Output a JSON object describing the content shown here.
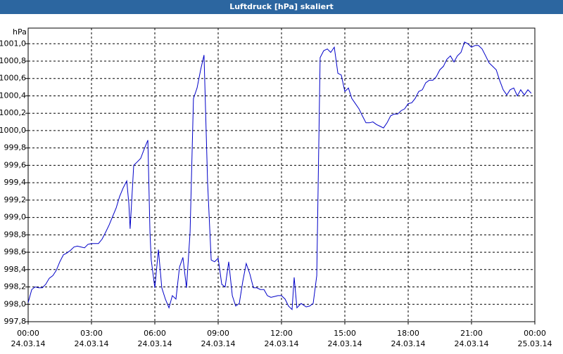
{
  "chart_data": {
    "type": "line",
    "title": "Luftdruck [hPa] skaliert",
    "y_label": "hPa",
    "color": "#0000c8",
    "grid": true,
    "x": [
      0,
      0.17,
      0.33,
      0.5,
      0.67,
      0.83,
      1,
      1.17,
      1.33,
      1.5,
      1.67,
      1.83,
      2,
      2.17,
      2.33,
      2.5,
      2.67,
      2.83,
      3,
      3.17,
      3.33,
      3.5,
      3.67,
      3.83,
      4,
      4.17,
      4.33,
      4.5,
      4.67,
      4.77,
      4.83,
      5,
      5.17,
      5.33,
      5.5,
      5.67,
      5.77,
      5.83,
      6,
      6.17,
      6.33,
      6.5,
      6.67,
      6.83,
      7,
      7.17,
      7.33,
      7.5,
      7.67,
      7.83,
      8,
      8.17,
      8.33,
      8.5,
      8.67,
      8.83,
      9,
      9.17,
      9.33,
      9.5,
      9.67,
      9.83,
      10,
      10.17,
      10.33,
      10.5,
      10.67,
      10.83,
      11,
      11.17,
      11.33,
      11.5,
      11.67,
      11.83,
      12,
      12.17,
      12.33,
      12.5,
      12.6,
      12.73,
      12.93,
      13.17,
      13.33,
      13.5,
      13.67,
      13.83,
      14,
      14.17,
      14.33,
      14.5,
      14.67,
      14.83,
      15,
      15.17,
      15.33,
      15.5,
      15.67,
      15.83,
      16,
      16.17,
      16.33,
      16.5,
      16.67,
      16.83,
      17,
      17.17,
      17.33,
      17.5,
      17.67,
      17.83,
      18,
      18.17,
      18.33,
      18.5,
      18.67,
      18.83,
      19,
      19.17,
      19.33,
      19.5,
      19.67,
      19.83,
      20,
      20.17,
      20.33,
      20.5,
      20.67,
      20.83,
      21,
      21.17,
      21.33,
      21.5,
      21.67,
      21.83,
      22,
      22.17,
      22.33,
      22.5,
      22.67,
      22.83,
      23,
      23.17,
      23.33,
      23.5,
      23.67,
      23.83
    ],
    "values": [
      998.02,
      998.17,
      998.2,
      998.19,
      998.19,
      998.23,
      998.3,
      998.33,
      998.39,
      998.49,
      998.57,
      998.59,
      998.62,
      998.66,
      998.67,
      998.66,
      998.65,
      998.69,
      998.7,
      998.7,
      998.7,
      998.75,
      998.83,
      998.91,
      999.01,
      999.11,
      999.24,
      999.34,
      999.42,
      999.16,
      998.87,
      999.6,
      999.64,
      999.68,
      999.79,
      999.89,
      998.83,
      998.51,
      998.19,
      998.63,
      998.19,
      998.06,
      997.96,
      998.1,
      998.06,
      998.43,
      998.54,
      998.19,
      998.83,
      1000.37,
      1000.49,
      1000.7,
      1000.87,
      999.4,
      998.51,
      998.49,
      998.53,
      998.23,
      998.2,
      998.49,
      998.1,
      997.98,
      998.01,
      998.27,
      998.47,
      998.35,
      998.19,
      998.19,
      998.17,
      998.17,
      998.1,
      998.08,
      998.09,
      998.1,
      998.1,
      998.06,
      997.98,
      997.94,
      998.31,
      997.96,
      998.01,
      997.97,
      997.98,
      998.01,
      998.33,
      1000.84,
      1000.92,
      1000.94,
      1000.9,
      1000.96,
      1000.66,
      1000.64,
      1000.45,
      1000.49,
      1000.37,
      1000.31,
      1000.25,
      1000.17,
      1000.09,
      1000.09,
      1000.1,
      1000.07,
      1000.05,
      1000.03,
      1000.09,
      1000.17,
      1000.19,
      1000.19,
      1000.23,
      1000.25,
      1000.31,
      1000.32,
      1000.37,
      1000.45,
      1000.47,
      1000.55,
      1000.58,
      1000.58,
      1000.62,
      1000.7,
      1000.74,
      1000.82,
      1000.86,
      1000.79,
      1000.86,
      1000.9,
      1001.02,
      1001.0,
      1000.96,
      1000.98,
      1000.98,
      1000.94,
      1000.86,
      1000.78,
      1000.74,
      1000.7,
      1000.58,
      1000.47,
      1000.41,
      1000.47,
      1000.49,
      1000.4,
      1000.47,
      1000.41,
      1000.47,
      1000.43
    ],
    "xlim": [
      0,
      24
    ],
    "xticks": [
      {
        "value": 0,
        "label": "00:00",
        "date": "24.03.14"
      },
      {
        "value": 3,
        "label": "03:00",
        "date": "24.03.14"
      },
      {
        "value": 6,
        "label": "06:00",
        "date": "24.03.14"
      },
      {
        "value": 9,
        "label": "09:00",
        "date": "24.03.14"
      },
      {
        "value": 12,
        "label": "12:00",
        "date": "24.03.14"
      },
      {
        "value": 15,
        "label": "15:00",
        "date": "24.03.14"
      },
      {
        "value": 18,
        "label": "18:00",
        "date": "24.03.14"
      },
      {
        "value": 21,
        "label": "21:00",
        "date": "24.03.14"
      },
      {
        "value": 24,
        "label": "00:00",
        "date": "25.03.14"
      }
    ],
    "ylim": [
      997.8,
      1001.18
    ],
    "yticks": [
      {
        "value": 997.8,
        "label": "997,8"
      },
      {
        "value": 998.0,
        "label": "998,0"
      },
      {
        "value": 998.2,
        "label": "998,2"
      },
      {
        "value": 998.4,
        "label": "998,4"
      },
      {
        "value": 998.6,
        "label": "998,6"
      },
      {
        "value": 998.8,
        "label": "998,8"
      },
      {
        "value": 999.0,
        "label": "999,0"
      },
      {
        "value": 999.2,
        "label": "999,2"
      },
      {
        "value": 999.4,
        "label": "999,4"
      },
      {
        "value": 999.6,
        "label": "999,6"
      },
      {
        "value": 999.8,
        "label": "999,8"
      },
      {
        "value": 1000.0,
        "label": "1000,0"
      },
      {
        "value": 1000.2,
        "label": "1000,2"
      },
      {
        "value": 1000.4,
        "label": "1000,4"
      },
      {
        "value": 1000.6,
        "label": "1000,6"
      },
      {
        "value": 1000.8,
        "label": "1000,8"
      },
      {
        "value": 1001.0,
        "label": "1001,0"
      }
    ]
  }
}
